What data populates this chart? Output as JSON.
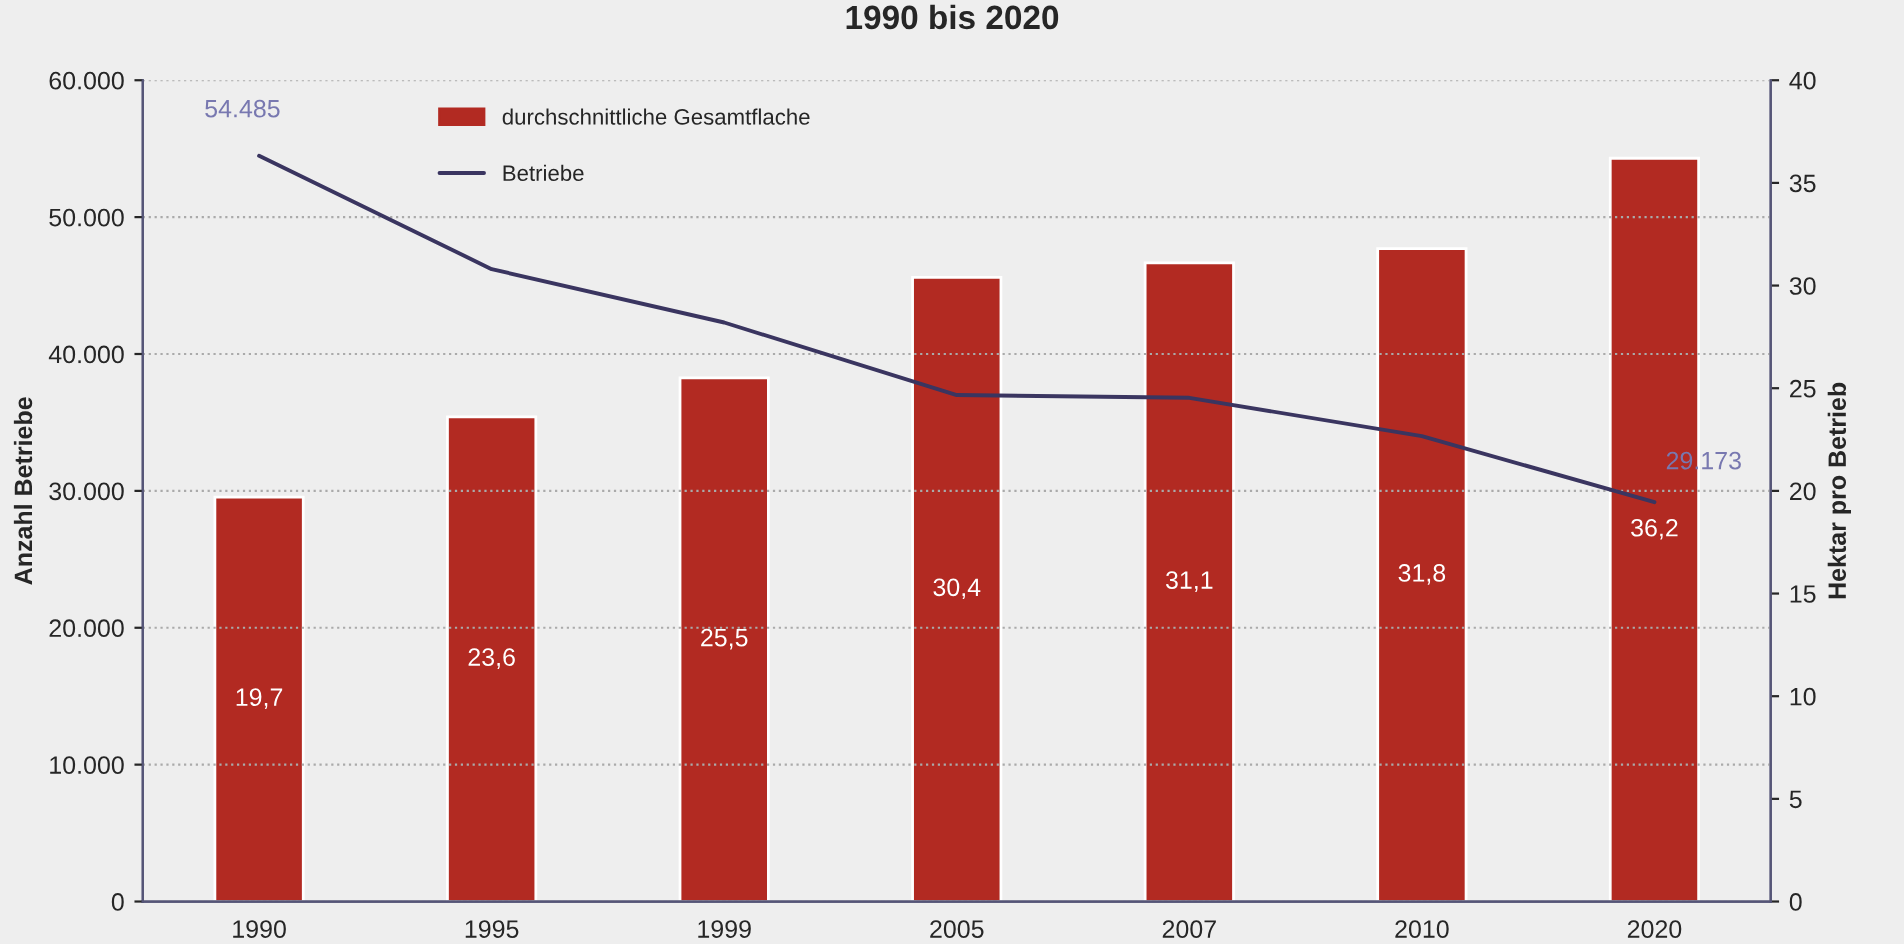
{
  "chart_data": {
    "type": "bar",
    "title": "1990 bis 2020",
    "categories": [
      "1990",
      "1995",
      "1999",
      "2005",
      "2007",
      "2010",
      "2020"
    ],
    "series": [
      {
        "name": "durchschnittliche Gesamtflache",
        "axis": "y2",
        "color": "#b22a22",
        "values": [
          19.7,
          23.6,
          25.5,
          30.4,
          31.1,
          31.8,
          36.2
        ],
        "value_labels": [
          "19,7",
          "23,6",
          "25,5",
          "30,4",
          "31,1",
          "31,8",
          "36,2"
        ]
      },
      {
        "name": "Betriebe",
        "type": "line",
        "axis": "y",
        "color": "#3a3560",
        "values": [
          54485,
          46200,
          42300,
          37000,
          36800,
          34000,
          29173
        ],
        "value_labels": [
          "54.485",
          null,
          null,
          null,
          null,
          null,
          "29.173"
        ]
      }
    ],
    "ylabel": "Anzahl Betriebe",
    "y2label": "Hektar pro Betrieb",
    "ylim": [
      0,
      60000
    ],
    "yticks": [
      {
        "value": 0,
        "label": "0"
      },
      {
        "value": 10000,
        "label": "10.000"
      },
      {
        "value": 20000,
        "label": "20.000"
      },
      {
        "value": 30000,
        "label": "30.000"
      },
      {
        "value": 40000,
        "label": "40.000"
      },
      {
        "value": 50000,
        "label": "50.000"
      },
      {
        "value": 60000,
        "label": "60.000"
      }
    ],
    "y2lim": [
      0,
      40
    ],
    "y2ticks": [
      0,
      5,
      10,
      15,
      20,
      25,
      30,
      35,
      40
    ],
    "grid": "y",
    "legend": "top left",
    "marker": "none",
    "line_style": "solid"
  }
}
